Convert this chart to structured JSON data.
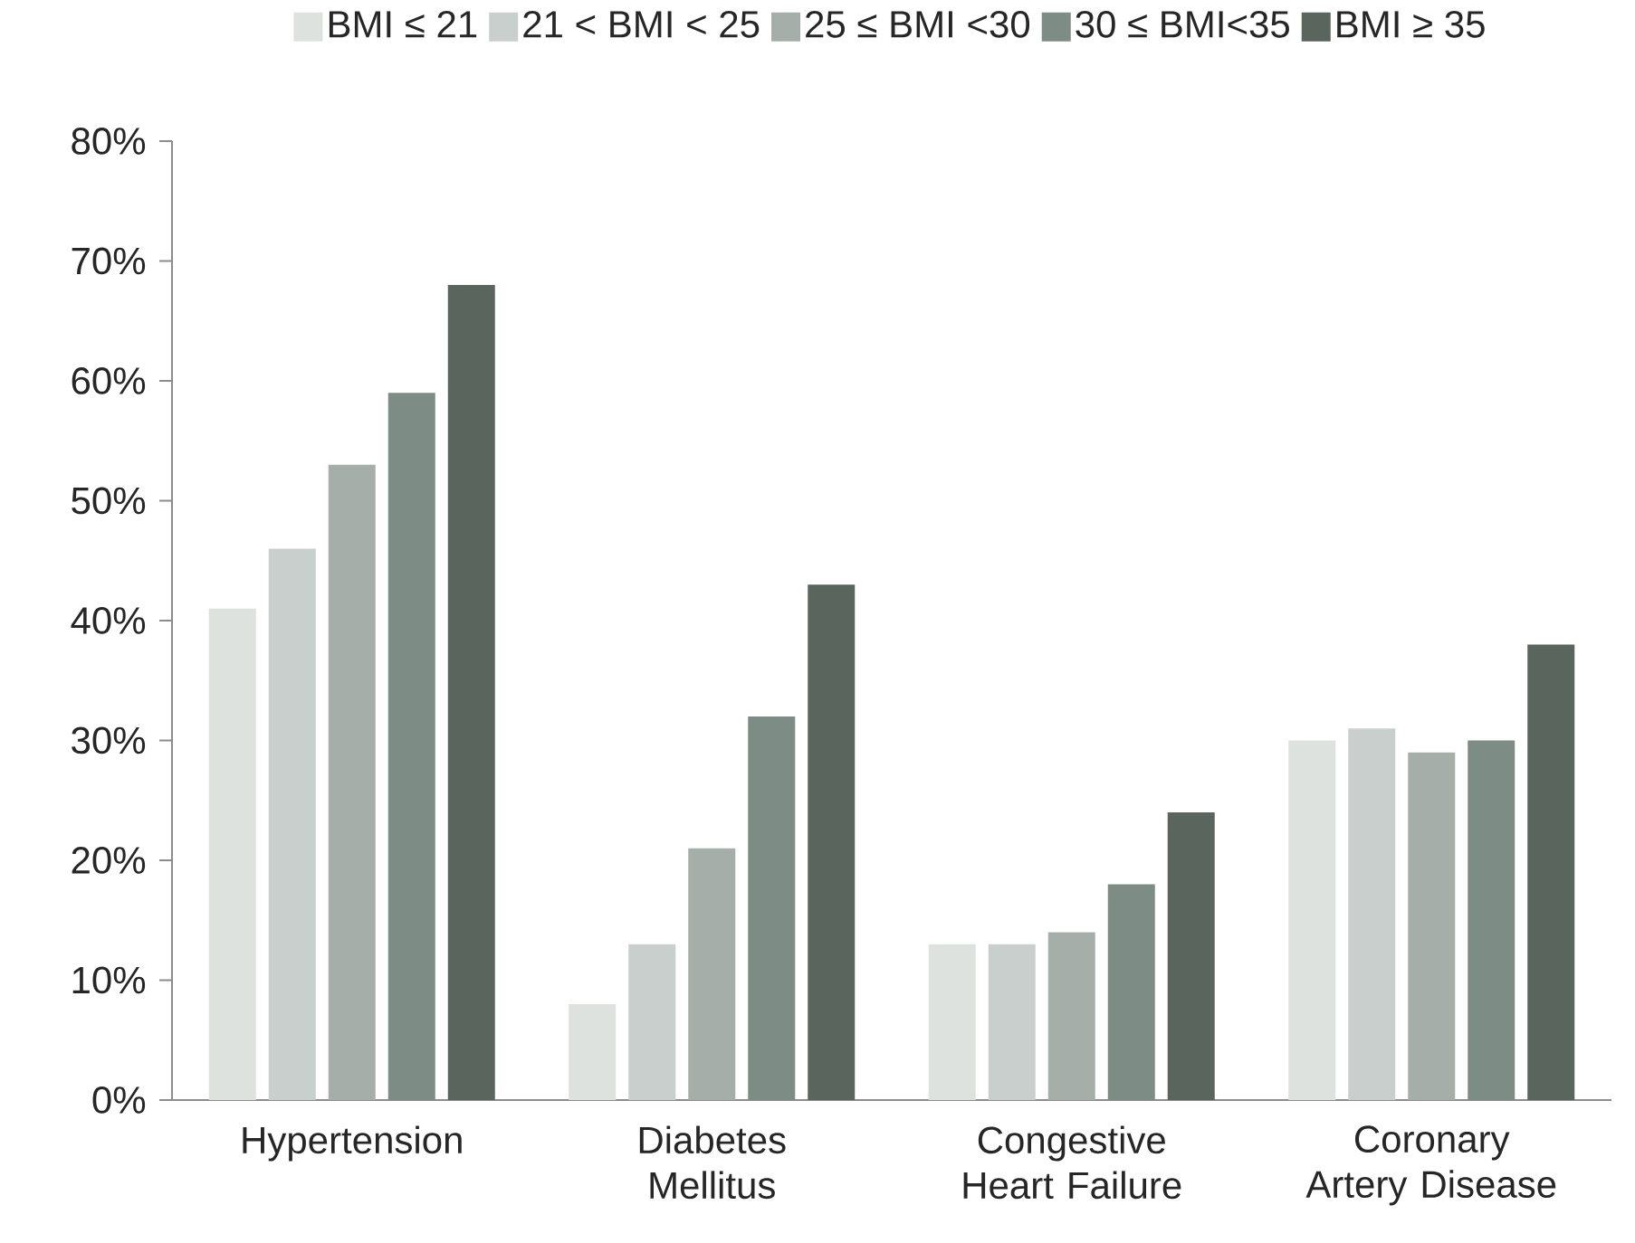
{
  "chart_data": {
    "type": "bar",
    "categories": [
      "Hypertension",
      "Diabetes Mellitus",
      "Congestive Heart Failure",
      "Coronary Artery Disease"
    ],
    "series": [
      {
        "name": "BMI ≤ 21",
        "color": "#dde2df",
        "values": [
          41,
          8,
          13,
          30
        ]
      },
      {
        "name": "21 < BMI < 25",
        "color": "#c9cfcc",
        "values": [
          46,
          13,
          13,
          31
        ]
      },
      {
        "name": "25 ≤ BMI <30",
        "color": "#a6aeaa",
        "values": [
          53,
          21,
          14,
          29
        ]
      },
      {
        "name": "30 ≤ BMI<35",
        "color": "#7d8c84",
        "values": [
          59,
          32,
          18,
          30
        ]
      },
      {
        "name": "BMI ≥ 35",
        "color": "#5a655d",
        "values": [
          68,
          43,
          24,
          38
        ]
      }
    ],
    "ylim": [
      0,
      80
    ],
    "yticks": [
      {
        "value": 0,
        "label": "0%"
      },
      {
        "value": 10,
        "label": "10%"
      },
      {
        "value": 20,
        "label": "20%"
      },
      {
        "value": 30,
        "label": "30%"
      },
      {
        "value": 40,
        "label": "40%"
      },
      {
        "value": 50,
        "label": "50%"
      },
      {
        "value": 60,
        "label": "60%"
      },
      {
        "value": 70,
        "label": "70%"
      },
      {
        "value": 80,
        "label": "80%"
      }
    ],
    "legend": "top"
  }
}
